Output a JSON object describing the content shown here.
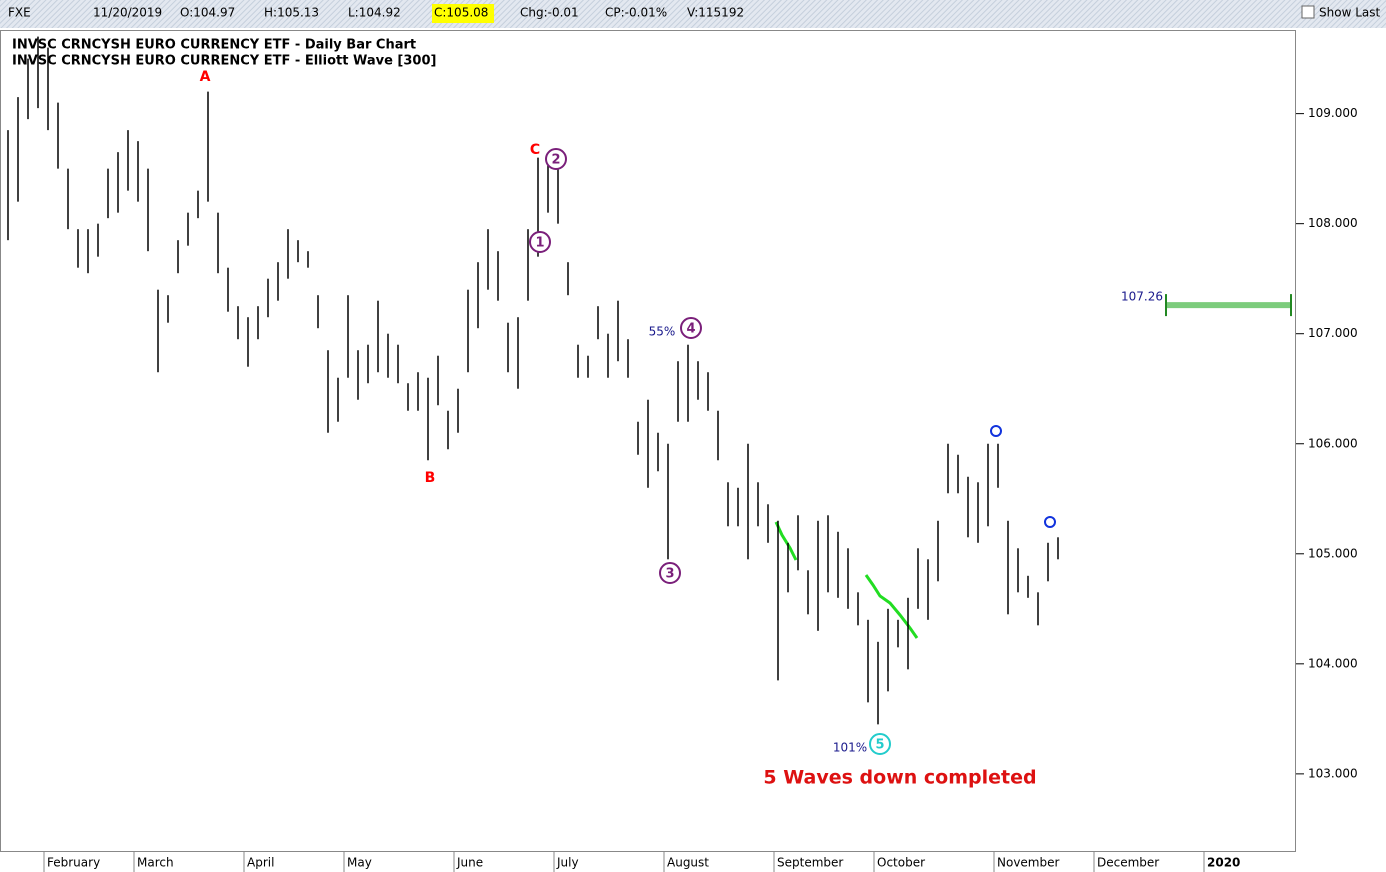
{
  "header": {
    "symbol": "FXE",
    "date": "11/20/2019",
    "open": "O:104.97",
    "high": "H:105.13",
    "low": "L:104.92",
    "close": "C:105.08",
    "change": "Chg:-0.01",
    "change_pct": "CP:-0.01%",
    "volume": "V:115192",
    "show_last": "Show Last"
  },
  "chart_data": {
    "type": "ohlc",
    "titles": [
      "INVSC CRNCYSH EURO CURRENCY ETF - Daily Bar Chart",
      "INVSC CRNCYSH EURO CURRENCY ETF - Elliott Wave [300]"
    ],
    "categories": [
      null,
      null,
      null,
      null,
      "February",
      null,
      null,
      null,
      null,
      null,
      null,
      null,
      null,
      "March",
      null,
      null,
      null,
      null,
      null,
      null,
      null,
      null,
      null,
      null,
      "April",
      null,
      null,
      null,
      null,
      null,
      null,
      null,
      null,
      null,
      "May",
      null,
      null,
      null,
      null,
      null,
      null,
      null,
      null,
      null,
      null,
      "June",
      null,
      null,
      null,
      null,
      null,
      null,
      null,
      null,
      null,
      "July",
      null,
      null,
      null,
      null,
      null,
      null,
      null,
      null,
      null,
      null,
      "August",
      null,
      null,
      null,
      null,
      null,
      null,
      null,
      null,
      null,
      null,
      "September",
      null,
      null,
      null,
      null,
      null,
      null,
      null,
      null,
      null,
      "October",
      null,
      null,
      null,
      null,
      null,
      null,
      null,
      null,
      null,
      null,
      null,
      "November",
      null,
      null,
      null,
      null,
      null,
      null,
      null,
      null,
      null,
      "December",
      null,
      null,
      null,
      null,
      null,
      null,
      null,
      null,
      null,
      null,
      "2020",
      null,
      null,
      null,
      null,
      null,
      null,
      null,
      null
    ],
    "high": [
      108.85,
      109.15,
      109.5,
      109.7,
      109.6,
      109.1,
      108.5,
      107.95,
      107.95,
      108.0,
      108.5,
      108.65,
      108.85,
      108.75,
      108.5,
      107.4,
      107.35,
      107.85,
      108.1,
      108.3,
      109.2,
      108.1,
      107.6,
      107.25,
      107.15,
      107.25,
      107.5,
      107.65,
      107.95,
      107.85,
      107.75,
      107.35,
      106.85,
      106.6,
      107.35,
      106.85,
      106.9,
      107.3,
      107.0,
      106.9,
      106.55,
      106.65,
      106.6,
      106.8,
      106.3,
      106.5,
      107.4,
      107.65,
      107.95,
      107.75,
      107.1,
      107.15,
      107.95,
      108.6,
      108.55,
      108.5,
      107.65,
      106.9,
      106.8,
      107.25,
      107.0,
      107.3,
      106.95,
      106.2,
      106.4,
      106.1,
      106.0,
      106.75,
      106.9,
      106.75,
      106.65,
      106.3,
      105.65,
      105.6,
      106.0,
      105.65,
      105.45,
      105.3,
      105.1,
      105.35,
      104.85,
      105.3,
      105.35,
      105.2,
      105.05,
      104.65,
      104.4,
      104.2,
      104.5,
      104.4,
      104.6,
      105.05,
      104.95,
      105.3,
      106.0,
      105.9,
      105.7,
      105.65,
      106.0,
      106.0,
      105.3,
      105.05,
      104.8,
      104.65,
      105.1,
      105.15,
      null,
      null,
      null,
      null,
      null,
      null,
      null,
      null,
      null,
      null,
      null,
      null,
      null,
      null,
      null,
      null,
      null,
      null,
      null,
      null,
      null,
      null,
      null
    ],
    "low": [
      107.85,
      108.2,
      108.95,
      109.05,
      108.85,
      108.5,
      107.95,
      107.6,
      107.55,
      107.7,
      108.05,
      108.1,
      108.3,
      108.2,
      107.75,
      106.65,
      107.1,
      107.55,
      107.8,
      108.05,
      108.2,
      107.55,
      107.2,
      106.95,
      106.7,
      106.95,
      107.15,
      107.3,
      107.5,
      107.65,
      107.6,
      107.05,
      106.1,
      106.2,
      106.6,
      106.4,
      106.55,
      106.65,
      106.6,
      106.55,
      106.3,
      106.3,
      105.85,
      106.35,
      105.95,
      106.1,
      106.65,
      107.05,
      107.4,
      107.3,
      106.65,
      106.5,
      107.3,
      107.7,
      108.1,
      108.0,
      107.35,
      106.6,
      106.6,
      106.95,
      106.6,
      106.75,
      106.6,
      105.9,
      105.6,
      105.75,
      104.95,
      106.2,
      106.2,
      106.4,
      106.3,
      105.85,
      105.25,
      105.25,
      104.95,
      105.25,
      105.1,
      103.85,
      104.65,
      104.85,
      104.45,
      104.3,
      104.65,
      104.6,
      104.5,
      104.35,
      103.65,
      103.45,
      103.75,
      104.15,
      103.95,
      104.5,
      104.4,
      104.75,
      105.55,
      105.55,
      105.15,
      105.1,
      105.25,
      105.6,
      104.45,
      104.65,
      104.6,
      104.35,
      104.75,
      104.95,
      null,
      null,
      null,
      null,
      null,
      null,
      null,
      null,
      null,
      null,
      null,
      null,
      null,
      null,
      null,
      null,
      null,
      null,
      null,
      null,
      null,
      null,
      null
    ],
    "color": "#000000",
    "ylim": [
      102.29,
      109.76
    ],
    "yticks": [
      {
        "value": 103,
        "label": "103.000"
      },
      {
        "value": 104,
        "label": "104.000"
      },
      {
        "value": 105,
        "label": "105.000"
      },
      {
        "value": 106,
        "label": "106.000"
      },
      {
        "value": 107,
        "label": "107.000"
      },
      {
        "value": 108,
        "label": "108.000"
      },
      {
        "value": 109,
        "label": "109.000"
      }
    ],
    "target": 107.26,
    "annotations": [
      "A",
      "B",
      "C",
      "1",
      "2",
      "3",
      "4",
      "5",
      "55%",
      "101%",
      "5 Waves down completed"
    ]
  }
}
